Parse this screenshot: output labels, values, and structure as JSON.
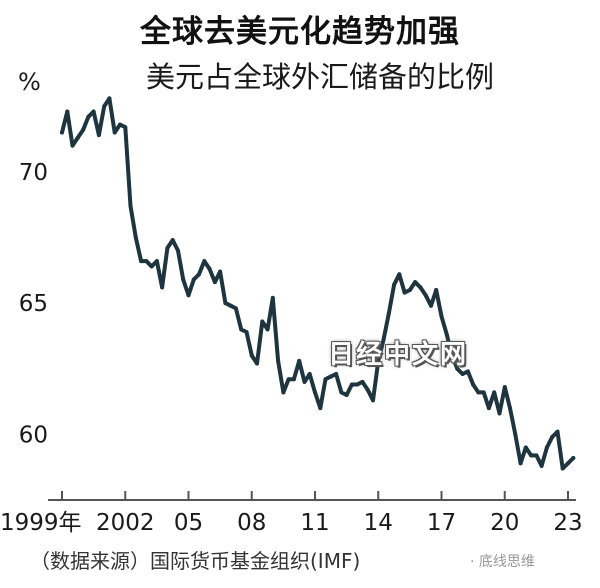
{
  "header": {
    "title": "全球去美元化趋势加强",
    "subtitle": "美元占全球外汇储备的比例"
  },
  "watermark": "日经中文网",
  "source": "（数据来源）国际货币基金组织(IMF)",
  "credit": "· 底线思维",
  "chart_data": {
    "type": "line",
    "ylabel": "%",
    "ylim": [
      57.5,
      73.5
    ],
    "y_ticks": [
      60,
      65,
      70
    ],
    "x_ticks": [
      {
        "x": 1999,
        "label": "1999年"
      },
      {
        "x": 2002,
        "label": "2002"
      },
      {
        "x": 2005,
        "label": "05"
      },
      {
        "x": 2008,
        "label": "08"
      },
      {
        "x": 2011,
        "label": "11"
      },
      {
        "x": 2014,
        "label": "14"
      },
      {
        "x": 2017,
        "label": "17"
      },
      {
        "x": 2020,
        "label": "20"
      },
      {
        "x": 2023,
        "label": "23"
      }
    ],
    "xlim": [
      1999,
      2023
    ],
    "series": [
      {
        "color": "#1e3540",
        "x": [
          1999.0,
          1999.25,
          1999.5,
          1999.75,
          2000.0,
          2000.25,
          2000.5,
          2000.75,
          2001.0,
          2001.25,
          2001.5,
          2001.75,
          2002.0,
          2002.25,
          2002.5,
          2002.75,
          2003.0,
          2003.25,
          2003.5,
          2003.75,
          2004.0,
          2004.25,
          2004.5,
          2004.75,
          2005.0,
          2005.25,
          2005.5,
          2005.75,
          2006.0,
          2006.25,
          2006.5,
          2006.75,
          2007.0,
          2007.25,
          2007.5,
          2007.75,
          2008.0,
          2008.25,
          2008.5,
          2008.75,
          2009.0,
          2009.25,
          2009.5,
          2009.75,
          2010.0,
          2010.25,
          2010.5,
          2010.75,
          2011.0,
          2011.25,
          2011.5,
          2011.75,
          2012.0,
          2012.25,
          2012.5,
          2012.75,
          2013.0,
          2013.25,
          2013.5,
          2013.75,
          2014.0,
          2014.25,
          2014.5,
          2014.75,
          2015.0,
          2015.25,
          2015.5,
          2015.75,
          2016.0,
          2016.25,
          2016.5,
          2016.75,
          2017.0,
          2017.25,
          2017.5,
          2017.75,
          2018.0,
          2018.25,
          2018.5,
          2018.75,
          2019.0,
          2019.25,
          2019.5,
          2019.75,
          2020.0,
          2020.25,
          2020.5,
          2020.75,
          2021.0,
          2021.25,
          2021.5,
          2021.75,
          2022.0,
          2022.25,
          2022.5,
          2022.75,
          2023.0,
          2023.25
        ],
        "y": [
          71.5,
          72.3,
          71.0,
          71.3,
          71.6,
          72.1,
          72.3,
          71.4,
          72.5,
          72.8,
          71.5,
          71.8,
          71.7,
          68.7,
          67.5,
          66.6,
          66.6,
          66.4,
          66.6,
          65.6,
          67.1,
          67.4,
          67.0,
          65.9,
          65.3,
          65.9,
          66.1,
          66.6,
          66.3,
          65.8,
          66.2,
          65.0,
          64.9,
          64.8,
          64.0,
          63.9,
          63.0,
          62.7,
          64.3,
          64.0,
          65.2,
          62.8,
          61.6,
          62.1,
          62.1,
          62.8,
          62.0,
          62.3,
          61.6,
          61.0,
          62.1,
          62.2,
          62.3,
          61.6,
          61.5,
          61.9,
          61.9,
          62.0,
          61.7,
          61.3,
          62.8,
          63.6,
          64.6,
          65.7,
          66.1,
          65.4,
          65.5,
          65.8,
          65.6,
          65.3,
          64.9,
          65.5,
          64.5,
          63.8,
          63.0,
          62.5,
          62.3,
          62.4,
          61.9,
          61.6,
          61.6,
          61.0,
          61.6,
          60.8,
          61.8,
          61.0,
          60.0,
          58.9,
          59.5,
          59.2,
          59.2,
          58.8,
          59.5,
          59.9,
          60.1,
          58.7,
          58.9,
          59.1
        ]
      }
    ]
  }
}
